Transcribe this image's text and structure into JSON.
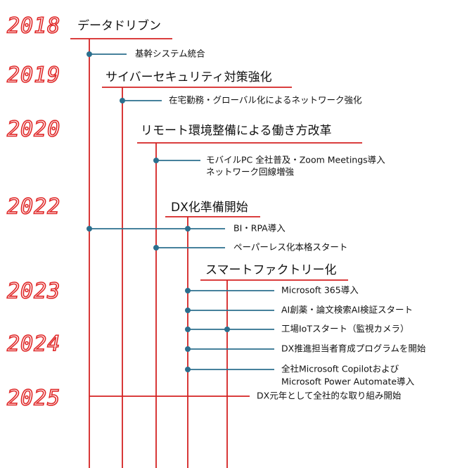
{
  "years": [
    "2018",
    "2019",
    "2020",
    "2022",
    "2023",
    "2024",
    "2025"
  ],
  "phases": [
    "データドリブン",
    "サイバーセキュリティ対策強化",
    "リモート環境整備による働き方改革",
    "DX化準備開始",
    "スマートファクトリー化"
  ],
  "events": [
    {
      "lines": [
        "基幹システム統合"
      ]
    },
    {
      "lines": [
        "在宅勤務・グローバル化によるネットワーク強化"
      ]
    },
    {
      "lines": [
        "モバイルPC 全社普及・Zoom Meetings導入",
        "ネットワーク回線増強"
      ]
    },
    {
      "lines": [
        "BI・RPA導入"
      ]
    },
    {
      "lines": [
        "ペーパーレス化本格スタート"
      ]
    },
    {
      "lines": [
        "Microsoft 365導入"
      ]
    },
    {
      "lines": [
        "AI創薬・論文検索AI検証スタート"
      ]
    },
    {
      "lines": [
        "工場IoTスタート（監視カメラ）"
      ]
    },
    {
      "lines": [
        "DX推進担当者育成プログラムを開始"
      ]
    },
    {
      "lines": [
        "全社Microsoft Copilotおよび",
        "Microsoft Power Automate導入"
      ]
    },
    {
      "lines": [
        "DX元年として全社的な取り組み開始"
      ]
    }
  ]
}
